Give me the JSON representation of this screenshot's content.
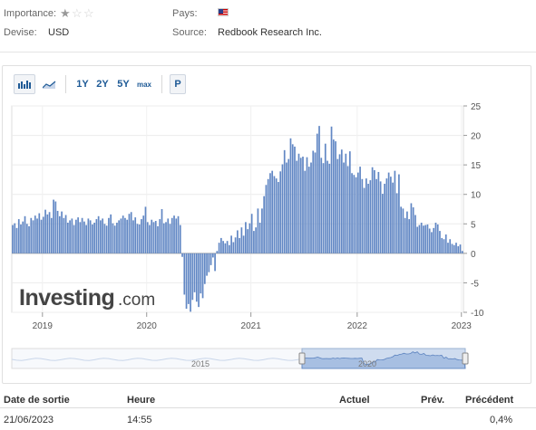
{
  "meta": {
    "importance_label": "Importance:",
    "importance_stars": 1,
    "importance_max": 3,
    "currency_label": "Devise:",
    "currency_value": "USD",
    "country_label": "Pays:",
    "country_flag": "us-flag",
    "source_label": "Source:",
    "source_value": "Redbook Research Inc."
  },
  "toolbar": {
    "bar_icon": "bar-chart-icon",
    "area_icon": "area-chart-icon",
    "ranges": [
      "1Y",
      "2Y",
      "5Y",
      "max"
    ],
    "selected_range": "5Y",
    "p_label": "P"
  },
  "chart_data": {
    "type": "bar",
    "title": "",
    "xlabel": "",
    "ylabel": "",
    "ylim": [
      -10,
      25
    ],
    "yticks": [
      25,
      20,
      15,
      10,
      5,
      0,
      -5,
      -10
    ],
    "xticks": [
      "2019",
      "2020",
      "2021",
      "2022",
      "2023"
    ],
    "bar_color": "#6187c4",
    "grid": true,
    "series": [
      {
        "values": [
          4.8,
          5.1,
          4.3,
          5.8,
          4.9,
          5.4,
          6.3,
          5.0,
          4.6,
          6.0,
          5.6,
          6.4,
          5.9,
          6.8,
          5.7,
          6.2,
          7.4,
          6.6,
          7.0,
          6.0,
          9.1,
          8.8,
          7.2,
          6.3,
          7.1,
          6.0,
          6.5,
          5.2,
          5.6,
          5.9,
          4.8,
          5.7,
          6.1,
          5.3,
          6.0,
          5.4,
          4.8,
          5.9,
          5.6,
          4.9,
          5.2,
          5.8,
          6.3,
          5.6,
          5.9,
          5.0,
          4.7,
          6.0,
          6.6,
          5.1,
          4.7,
          5.2,
          5.6,
          5.9,
          6.4,
          6.0,
          5.7,
          6.7,
          7.0,
          5.6,
          6.1,
          5.0,
          4.9,
          5.8,
          6.4,
          7.9,
          5.3,
          4.8,
          5.7,
          5.3,
          5.5,
          4.6,
          5.8,
          7.5,
          5.1,
          5.3,
          5.9,
          5.0,
          6.0,
          6.4,
          5.9,
          6.3,
          4.8,
          -0.6,
          -7.0,
          -9.4,
          -8.6,
          -9.9,
          -7.9,
          -6.6,
          -8.2,
          -9.1,
          -6.8,
          -7.6,
          -5.2,
          -3.8,
          -3.2,
          -2.0,
          -0.7,
          -3.0,
          0.4,
          1.8,
          2.6,
          2.1,
          1.7,
          2.1,
          1.4,
          3.0,
          1.9,
          2.7,
          3.9,
          2.6,
          4.4,
          3.0,
          5.3,
          4.1,
          5.1,
          6.7,
          3.8,
          4.4,
          7.6,
          5.2,
          7.6,
          9.7,
          11.6,
          12.6,
          13.6,
          14.0,
          13.1,
          12.7,
          12.1,
          13.9,
          15.1,
          17.5,
          15.4,
          16.0,
          19.5,
          18.5,
          18.1,
          15.7,
          16.9,
          16.2,
          16.4,
          14.0,
          16.3,
          14.7,
          15.4,
          17.4,
          17.1,
          20.3,
          21.6,
          16.2,
          15.3,
          18.6,
          15.7,
          15.2,
          21.5,
          19.3,
          19.0,
          16.0,
          16.8,
          17.6,
          15.4,
          16.9,
          14.8,
          17.3,
          13.6,
          13.3,
          12.9,
          13.7,
          14.7,
          12.6,
          11.1,
          12.7,
          11.8,
          12.4,
          14.6,
          14.1,
          12.6,
          13.8,
          12.2,
          10.1,
          11.8,
          12.7,
          13.7,
          13.0,
          12.0,
          14.0,
          10.2,
          13.4,
          7.9,
          7.6,
          6.0,
          7.1,
          5.8,
          8.5,
          7.8,
          6.5,
          4.5,
          4.8,
          5.2,
          4.7,
          4.8,
          4.9,
          4.2,
          3.6,
          4.3,
          5.2,
          4.9,
          3.8,
          2.6,
          2.4,
          3.2,
          1.8,
          2.4,
          1.6,
          1.4,
          1.8,
          1.2,
          1.5,
          0.4
        ]
      }
    ]
  },
  "navigator": {
    "labels": [
      "2015",
      "2020"
    ]
  },
  "logo": {
    "text": "Investing",
    "suffix": ".com"
  },
  "table": {
    "headers": [
      "Date de sortie",
      "Heure",
      "Actuel",
      "Prév.",
      "Précédent"
    ],
    "rows": [
      [
        "21/06/2023",
        "14:55",
        "",
        "",
        "0,4%"
      ]
    ]
  }
}
